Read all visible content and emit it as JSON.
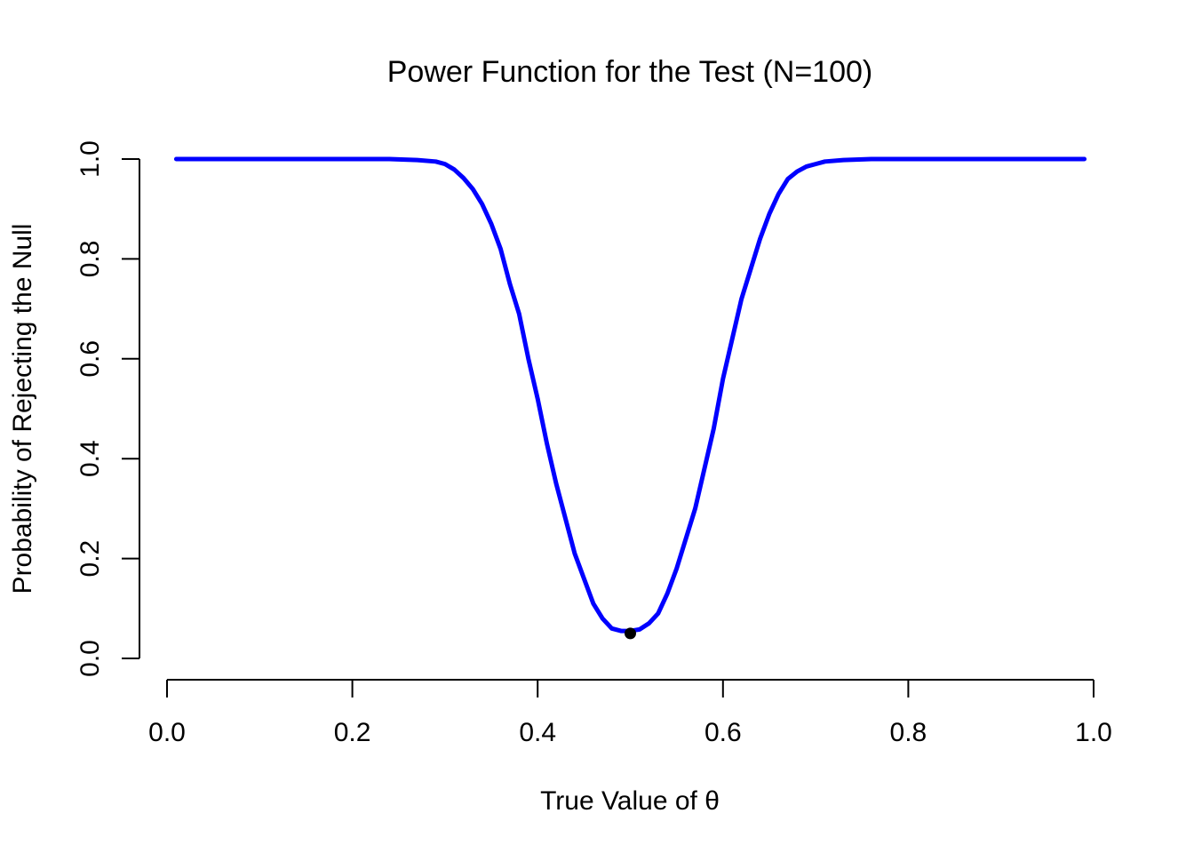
{
  "chart_data": {
    "type": "line",
    "title": "Power Function for the Test (N=100)",
    "xlabel": "True Value of θ",
    "ylabel": "Probability of Rejecting the Null",
    "xlim": [
      0.0,
      1.0
    ],
    "ylim": [
      0.0,
      1.0
    ],
    "x_ticks": [
      "0.0",
      "0.2",
      "0.4",
      "0.6",
      "0.8",
      "1.0"
    ],
    "y_ticks": [
      "0.0",
      "0.2",
      "0.4",
      "0.6",
      "0.8",
      "1.0"
    ],
    "grid": false,
    "legend": "none",
    "colors": {
      "curve": "#0000ff",
      "marker": "#000000",
      "axis": "#000000"
    },
    "series": [
      {
        "values_x": [
          0.01,
          0.05,
          0.1,
          0.15,
          0.2,
          0.24,
          0.27,
          0.29,
          0.3,
          0.31,
          0.32,
          0.33,
          0.34,
          0.35,
          0.36,
          0.37,
          0.38,
          0.39,
          0.4,
          0.41,
          0.42,
          0.43,
          0.44,
          0.45,
          0.46,
          0.47,
          0.48,
          0.49,
          0.5,
          0.51,
          0.52,
          0.53,
          0.54,
          0.55,
          0.56,
          0.57,
          0.58,
          0.59,
          0.6,
          0.61,
          0.62,
          0.63,
          0.64,
          0.65,
          0.66,
          0.67,
          0.68,
          0.69,
          0.7,
          0.71,
          0.73,
          0.76,
          0.8,
          0.85,
          0.9,
          0.95,
          0.99
        ],
        "values_y": [
          1.0,
          1.0,
          1.0,
          1.0,
          1.0,
          1.0,
          0.998,
          0.995,
          0.99,
          0.979,
          0.962,
          0.94,
          0.91,
          0.87,
          0.82,
          0.75,
          0.69,
          0.6,
          0.52,
          0.43,
          0.35,
          0.28,
          0.21,
          0.16,
          0.11,
          0.08,
          0.06,
          0.055,
          0.055,
          0.058,
          0.07,
          0.09,
          0.13,
          0.18,
          0.24,
          0.3,
          0.38,
          0.46,
          0.56,
          0.64,
          0.72,
          0.78,
          0.84,
          0.89,
          0.93,
          0.96,
          0.975,
          0.985,
          0.99,
          0.995,
          0.998,
          1.0,
          1.0,
          1.0,
          1.0,
          1.0,
          1.0
        ]
      }
    ],
    "points": [
      {
        "x": 0.5,
        "y": 0.05
      }
    ]
  }
}
